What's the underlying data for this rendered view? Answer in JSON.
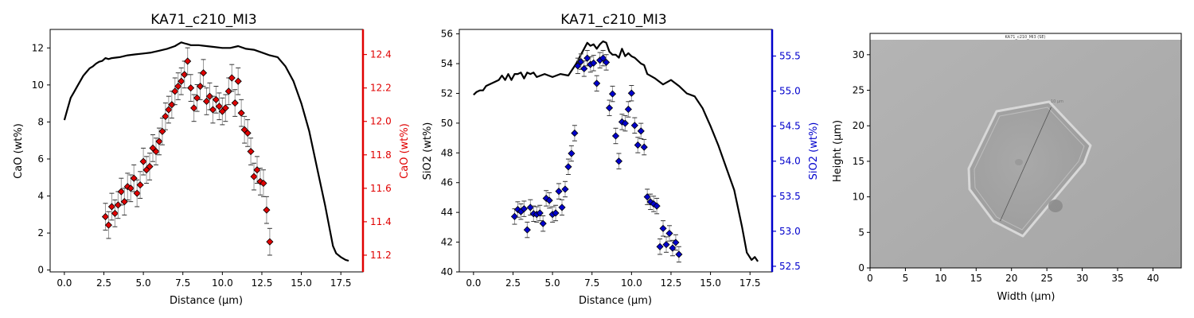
{
  "figure": {
    "panel1": {
      "title": "KA71_c210_MI3",
      "xlabel": "Distance (μm)",
      "ylabel_left": "CaO (wt%)",
      "ylabel_right": "CaO (wt%)"
    },
    "panel2": {
      "title": "KA71_c210_MI3",
      "xlabel": "Distance (μm)",
      "ylabel_left": "SiO2 (wt%)",
      "ylabel_right": "SiO2 (wt%)"
    },
    "panel3": {
      "xlabel": "Width (μm)",
      "ylabel": "Height (μm)",
      "image_caption": "KA71_c210_MI3 (SE)",
      "scale_text": "10 μm"
    }
  },
  "colors": {
    "line": "#000000",
    "cao_points": "#e00000",
    "cao_axis": "#e00000",
    "sio2_points": "#0000cc",
    "sio2_axis": "#0000cc",
    "errorbar": "#999999"
  },
  "chart_data": [
    {
      "type": "line+scatter",
      "title": "KA71_c210_MI3",
      "xlabel": "Distance (μm)",
      "ylabel": "CaO (wt%)",
      "ylabel_right": "CaO (wt%)",
      "xlim": [
        -0.9,
        18.9
      ],
      "ylim": [
        -0.1,
        13.0
      ],
      "ylim_right": [
        11.1,
        12.55
      ],
      "xticks": [
        0.0,
        2.5,
        5.0,
        7.5,
        10.0,
        12.5,
        15.0,
        17.5
      ],
      "xtick_labels": [
        "0.0",
        "2.5",
        "5.0",
        "7.5",
        "10.0",
        "12.5",
        "15.0",
        "17.5"
      ],
      "yticks": [
        0,
        2,
        4,
        6,
        8,
        10,
        12
      ],
      "yticks_right": [
        11.2,
        11.4,
        11.6,
        11.8,
        12.0,
        12.2,
        12.4
      ],
      "line_series": {
        "axis": "left",
        "x": [
          0.0,
          0.2,
          0.4,
          0.6,
          0.8,
          1.0,
          1.2,
          1.4,
          1.6,
          1.8,
          2.0,
          2.2,
          2.4,
          2.6,
          2.8,
          3.0,
          3.5,
          4.0,
          4.5,
          5.0,
          5.5,
          6.0,
          6.5,
          7.0,
          7.2,
          7.4,
          7.6,
          7.8,
          8.0,
          8.5,
          9.0,
          9.5,
          10.0,
          10.5,
          11.0,
          11.5,
          12.0,
          12.5,
          13.0,
          13.5,
          14.0,
          14.5,
          15.0,
          15.5,
          16.0,
          16.5,
          17.0,
          17.2,
          17.5,
          17.8,
          18.0
        ],
        "y": [
          8.1,
          8.7,
          9.3,
          9.6,
          9.9,
          10.2,
          10.5,
          10.7,
          10.9,
          11.0,
          11.15,
          11.25,
          11.3,
          11.45,
          11.4,
          11.45,
          11.5,
          11.6,
          11.65,
          11.7,
          11.75,
          11.85,
          11.95,
          12.1,
          12.2,
          12.3,
          12.25,
          12.2,
          12.15,
          12.15,
          12.1,
          12.05,
          12.0,
          12.0,
          12.1,
          11.95,
          11.9,
          11.75,
          11.6,
          11.5,
          11.0,
          10.2,
          9.0,
          7.5,
          5.5,
          3.5,
          1.3,
          0.9,
          0.7,
          0.55,
          0.5
        ]
      },
      "scatter_series": {
        "axis": "right",
        "x": [
          2.6,
          2.8,
          3.0,
          3.2,
          3.4,
          3.6,
          3.8,
          4.0,
          4.2,
          4.4,
          4.6,
          4.8,
          5.0,
          5.2,
          5.4,
          5.6,
          5.8,
          6.0,
          6.2,
          6.4,
          6.6,
          6.8,
          7.0,
          7.2,
          7.4,
          7.6,
          7.8,
          8.0,
          8.2,
          8.4,
          8.6,
          8.8,
          9.0,
          9.2,
          9.4,
          9.6,
          9.8,
          10.0,
          10.2,
          10.4,
          10.6,
          10.8,
          11.0,
          11.2,
          11.4,
          11.6,
          11.8,
          12.0,
          12.2,
          12.4,
          12.6,
          12.8,
          13.0
        ],
        "y": [
          11.43,
          11.38,
          11.49,
          11.45,
          11.5,
          11.58,
          11.52,
          11.61,
          11.6,
          11.66,
          11.57,
          11.62,
          11.76,
          11.71,
          11.73,
          11.84,
          11.82,
          11.88,
          11.94,
          12.03,
          12.07,
          12.1,
          12.18,
          12.21,
          12.24,
          12.28,
          12.36,
          12.2,
          12.08,
          12.14,
          12.21,
          12.29,
          12.12,
          12.15,
          12.07,
          12.13,
          12.09,
          12.06,
          12.08,
          12.18,
          12.26,
          12.11,
          12.24,
          12.05,
          11.95,
          11.93,
          11.82,
          11.67,
          11.71,
          11.64,
          11.63,
          11.47,
          11.28
        ],
        "yerr": [
          0.08,
          0.08,
          0.08,
          0.08,
          0.08,
          0.08,
          0.08,
          0.08,
          0.08,
          0.08,
          0.08,
          0.08,
          0.08,
          0.08,
          0.08,
          0.08,
          0.08,
          0.08,
          0.08,
          0.08,
          0.08,
          0.08,
          0.08,
          0.08,
          0.08,
          0.08,
          0.08,
          0.08,
          0.08,
          0.08,
          0.08,
          0.08,
          0.08,
          0.08,
          0.08,
          0.08,
          0.08,
          0.08,
          0.08,
          0.08,
          0.08,
          0.08,
          0.08,
          0.08,
          0.08,
          0.08,
          0.08,
          0.08,
          0.08,
          0.08,
          0.08,
          0.08,
          0.08
        ]
      }
    },
    {
      "type": "line+scatter",
      "title": "KA71_c210_MI3",
      "xlabel": "Distance (μm)",
      "ylabel": "SiO2 (wt%)",
      "ylabel_right": "SiO2 (wt%)",
      "xlim": [
        -0.9,
        18.9
      ],
      "ylim": [
        40.0,
        56.3
      ],
      "ylim_right": [
        52.42,
        55.88
      ],
      "xticks": [
        0.0,
        2.5,
        5.0,
        7.5,
        10.0,
        12.5,
        15.0,
        17.5
      ],
      "xtick_labels": [
        "0.0",
        "2.5",
        "5.0",
        "7.5",
        "10.0",
        "12.5",
        "15.0",
        "17.5"
      ],
      "yticks": [
        40,
        42,
        44,
        46,
        48,
        50,
        52,
        54,
        56
      ],
      "yticks_right": [
        52.5,
        53.0,
        53.5,
        54.0,
        54.5,
        55.0,
        55.5
      ],
      "line_series": {
        "axis": "left",
        "x": [
          0.0,
          0.2,
          0.4,
          0.6,
          0.8,
          1.0,
          1.2,
          1.4,
          1.6,
          1.8,
          2.0,
          2.2,
          2.4,
          2.6,
          2.8,
          3.0,
          3.2,
          3.4,
          3.6,
          3.8,
          4.0,
          4.5,
          5.0,
          5.5,
          6.0,
          6.5,
          6.8,
          7.0,
          7.2,
          7.4,
          7.6,
          7.8,
          8.0,
          8.2,
          8.4,
          8.6,
          8.8,
          9.0,
          9.2,
          9.4,
          9.6,
          9.8,
          10.0,
          10.2,
          10.4,
          10.6,
          10.8,
          11.0,
          11.5,
          12.0,
          12.5,
          13.0,
          13.5,
          14.0,
          14.5,
          15.0,
          15.5,
          16.0,
          16.5,
          17.0,
          17.3,
          17.6,
          17.8,
          18.0
        ],
        "y": [
          51.9,
          52.1,
          52.2,
          52.2,
          52.5,
          52.6,
          52.7,
          52.8,
          52.9,
          53.2,
          52.9,
          53.3,
          52.9,
          53.3,
          53.3,
          53.4,
          53.0,
          53.4,
          53.3,
          53.4,
          53.1,
          53.3,
          53.1,
          53.3,
          53.2,
          54.0,
          54.6,
          55.0,
          55.4,
          55.2,
          55.3,
          55.0,
          55.3,
          55.5,
          55.4,
          54.8,
          54.6,
          54.6,
          54.4,
          55.0,
          54.5,
          54.7,
          54.5,
          54.4,
          54.2,
          54.0,
          53.9,
          53.3,
          53.0,
          52.6,
          52.9,
          52.5,
          52.0,
          51.8,
          51.0,
          49.8,
          48.5,
          47.0,
          45.5,
          43.0,
          41.3,
          40.8,
          41.0,
          40.7
        ]
      },
      "scatter_series": {
        "axis": "right",
        "x": [
          2.6,
          2.8,
          3.0,
          3.2,
          3.4,
          3.6,
          3.8,
          4.0,
          4.2,
          4.4,
          4.6,
          4.8,
          5.0,
          5.2,
          5.4,
          5.6,
          5.8,
          6.0,
          6.2,
          6.4,
          6.6,
          6.8,
          7.0,
          7.2,
          7.4,
          7.6,
          7.8,
          8.0,
          8.2,
          8.4,
          8.6,
          8.8,
          9.0,
          9.2,
          9.4,
          9.6,
          9.8,
          10.0,
          10.2,
          10.4,
          10.6,
          10.8,
          11.0,
          11.2,
          11.4,
          11.6,
          11.8,
          12.0,
          12.2,
          12.4,
          12.6,
          12.8,
          13.0
        ],
        "y": [
          53.21,
          53.31,
          53.28,
          53.32,
          53.02,
          53.34,
          53.25,
          53.24,
          53.26,
          53.11,
          53.47,
          53.44,
          53.24,
          53.26,
          53.57,
          53.34,
          53.6,
          53.92,
          54.11,
          54.4,
          55.36,
          55.42,
          55.32,
          55.47,
          55.38,
          55.4,
          55.11,
          55.44,
          55.47,
          55.41,
          54.76,
          54.96,
          54.36,
          54.0,
          54.56,
          54.54,
          54.74,
          54.97,
          54.51,
          54.23,
          54.43,
          54.2,
          53.49,
          53.42,
          53.39,
          53.36,
          52.78,
          53.04,
          52.81,
          52.97,
          52.76,
          52.84,
          52.67
        ],
        "yerr": [
          0.11,
          0.11,
          0.11,
          0.11,
          0.11,
          0.11,
          0.11,
          0.11,
          0.11,
          0.11,
          0.11,
          0.11,
          0.11,
          0.11,
          0.11,
          0.11,
          0.11,
          0.11,
          0.11,
          0.11,
          0.11,
          0.11,
          0.11,
          0.11,
          0.11,
          0.11,
          0.11,
          0.11,
          0.11,
          0.11,
          0.11,
          0.11,
          0.11,
          0.11,
          0.11,
          0.11,
          0.11,
          0.11,
          0.11,
          0.11,
          0.11,
          0.11,
          0.11,
          0.11,
          0.11,
          0.11,
          0.11,
          0.11,
          0.11,
          0.11,
          0.11,
          0.11,
          0.11
        ]
      }
    },
    {
      "type": "image",
      "xlabel": "Width (μm)",
      "ylabel": "Height (μm)",
      "xlim": [
        0,
        44
      ],
      "ylim": [
        0,
        33
      ],
      "xticks": [
        0,
        5,
        10,
        15,
        20,
        25,
        30,
        35,
        40
      ],
      "yticks": [
        0,
        5,
        10,
        15,
        20,
        25,
        30
      ],
      "profile_line": {
        "x": [
          18.4,
          25.6
        ],
        "y": [
          6.6,
          22.6
        ]
      }
    }
  ]
}
